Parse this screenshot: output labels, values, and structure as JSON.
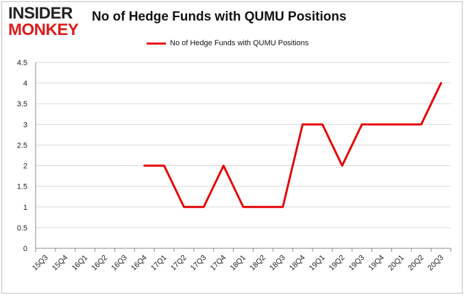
{
  "logo": {
    "line1": "INSIDER",
    "line2": "MONKEY"
  },
  "chart_data": {
    "type": "line",
    "title": "No of Hedge Funds with QUMU Positions",
    "xlabel": "",
    "ylabel": "",
    "ylim": [
      0,
      4.5
    ],
    "yticks": [
      "0",
      "0.5",
      "1",
      "1.5",
      "2",
      "2.5",
      "3",
      "3.5",
      "4",
      "4.5"
    ],
    "grid": true,
    "legend_position": "top-center",
    "categories": [
      "15Q3",
      "15Q4",
      "16Q1",
      "16Q2",
      "16Q3",
      "16Q4",
      "17Q1",
      "17Q2",
      "17Q3",
      "17Q4",
      "18Q1",
      "18Q2",
      "18Q3",
      "18Q4",
      "19Q1",
      "19Q2",
      "19Q3",
      "19Q4",
      "20Q1",
      "20Q2",
      "20Q3"
    ],
    "series": [
      {
        "name": "No of Hedge Funds with QUMU  Positions",
        "color": "#e60000",
        "values": [
          null,
          null,
          null,
          null,
          null,
          2,
          2,
          1,
          1,
          2,
          1,
          1,
          1,
          3,
          3,
          2,
          3,
          3,
          3,
          3,
          4
        ]
      }
    ]
  }
}
